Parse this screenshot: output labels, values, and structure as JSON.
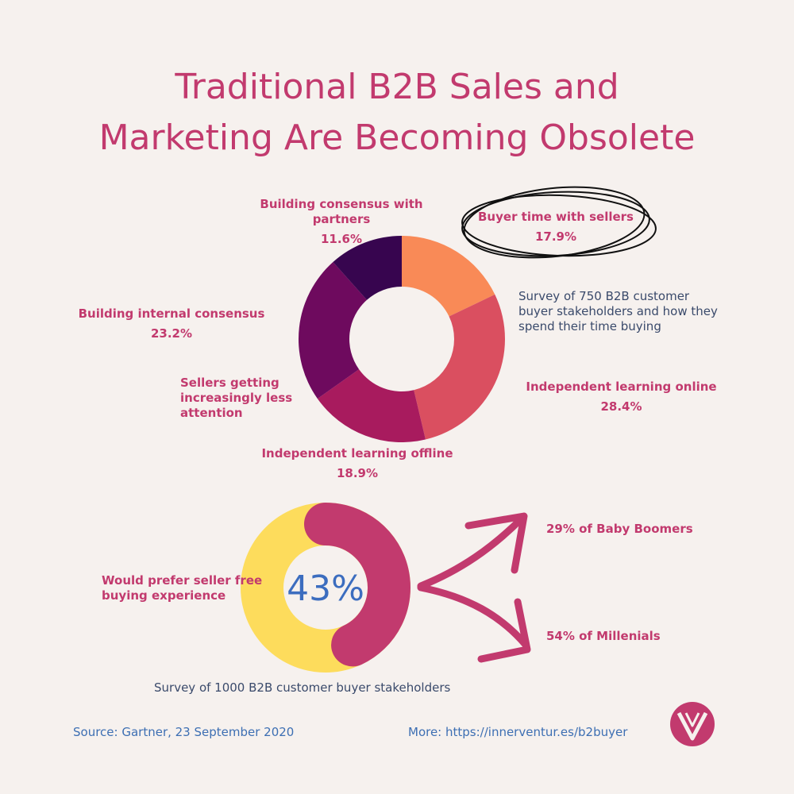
{
  "title_line1": "Traditional B2B Sales and",
  "title_line2": "Marketing Are Becoming Obsolete",
  "chart_data": [
    {
      "type": "pie",
      "donut": true,
      "note": "Survey of 750 B2B customer buyer stakeholders and how they spend their time buying",
      "annotation": "Sellers getting increasingly less attention",
      "slices": [
        {
          "label": "Buyer time with sellers",
          "value": 17.9,
          "pct_text": "17.9%",
          "color": "#f98a57"
        },
        {
          "label": "Independent learning online",
          "value": 28.4,
          "pct_text": "28.4%",
          "color": "#da4f60"
        },
        {
          "label": "Independent learning offline",
          "value": 18.9,
          "pct_text": "18.9%",
          "color": "#a81b5e"
        },
        {
          "label": "Building internal consensus",
          "value": 23.2,
          "pct_text": "23.2%",
          "color": "#6e0a5e"
        },
        {
          "label": "Building consensus with partners",
          "value": 11.6,
          "pct_text": "11.6%",
          "color": "#37054f"
        }
      ]
    },
    {
      "type": "pie",
      "donut": true,
      "center_text": "43%",
      "label": "Would prefer seller free buying experience",
      "note": "Survey of 1000 B2B customer buyer stakeholders",
      "value": 43,
      "color_value": "#c23a6e",
      "color_rest": "#fddc5c",
      "breakdown": [
        {
          "label": "29% of Baby Boomers",
          "value": 29
        },
        {
          "label": "54% of Millenials",
          "value": 54
        }
      ]
    }
  ],
  "source": "Source: Gartner, 23 September 2020",
  "more": "More: https://innerventur.es/b2buyer",
  "logo_icon": "v-logo-icon"
}
